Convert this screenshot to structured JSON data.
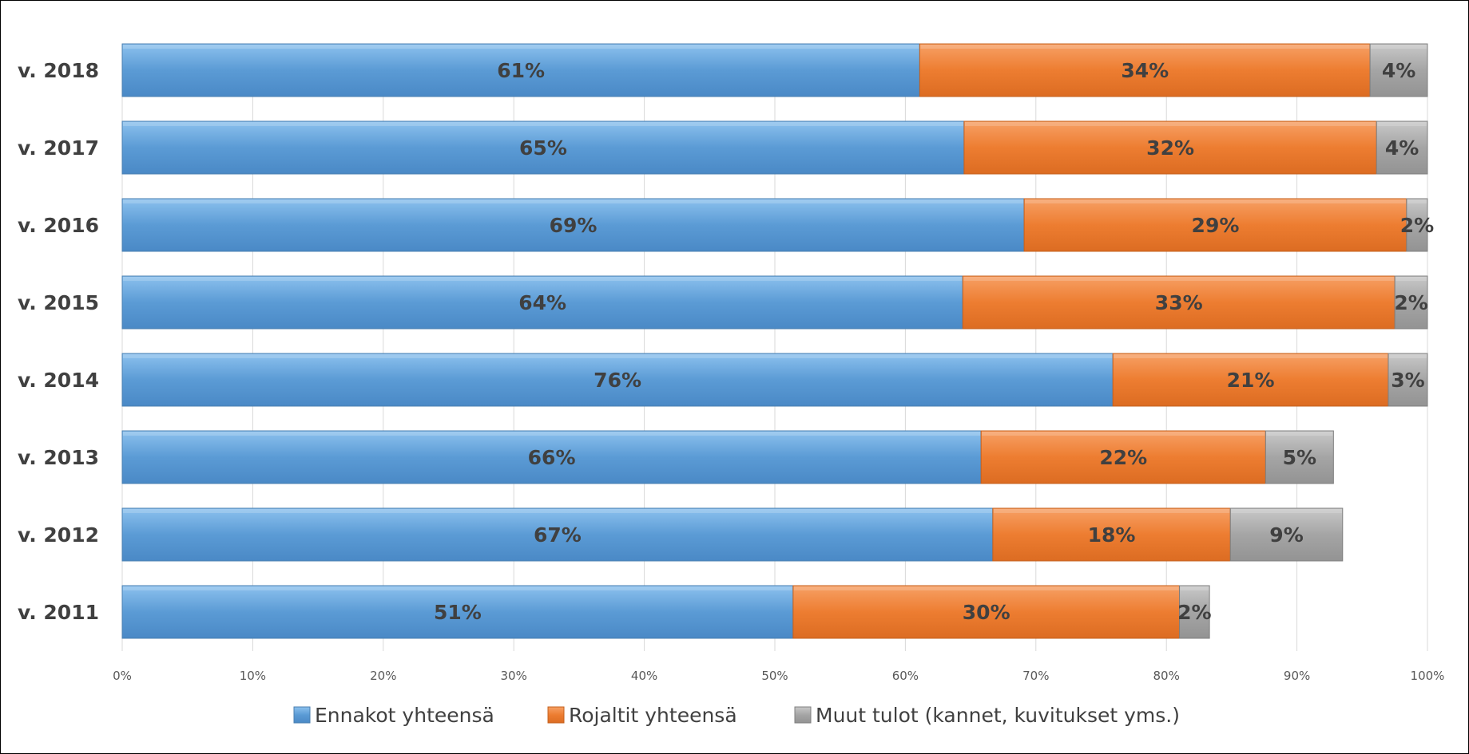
{
  "chart_data": {
    "type": "bar",
    "orientation": "horizontal",
    "stacked": true,
    "categories": [
      "v. 2018",
      "v. 2017",
      "v. 2016",
      "v. 2015",
      "v. 2014",
      "v. 2013",
      "v. 2012",
      "v. 2011"
    ],
    "series": [
      {
        "name": "Ennakot yhteensä",
        "color": "#5B9BD5",
        "values": [
          61.1,
          64.5,
          69.1,
          64.4,
          75.9,
          65.8,
          66.7,
          51.4
        ],
        "labels": [
          "61%",
          "65%",
          "69%",
          "64%",
          "76%",
          "66%",
          "67%",
          "51%"
        ]
      },
      {
        "name": "Rojaltit yhteensä",
        "color": "#ED7D31",
        "values": [
          34.5,
          31.6,
          29.3,
          33.1,
          21.1,
          21.8,
          18.2,
          29.6
        ],
        "labels": [
          "34%",
          "32%",
          "29%",
          "33%",
          "21%",
          "22%",
          "18%",
          "30%"
        ]
      },
      {
        "name": "Muut tulot (kannet, kuvitukset yms.)",
        "color": "#A5A5A5",
        "values": [
          4.4,
          3.9,
          1.6,
          2.5,
          3.0,
          5.2,
          8.6,
          2.3
        ],
        "labels": [
          "4%",
          "4%",
          "2%",
          "2%",
          "3%",
          "5%",
          "9%",
          "2%"
        ]
      }
    ],
    "x_ticks": [
      "0%",
      "10%",
      "20%",
      "30%",
      "40%",
      "50%",
      "60%",
      "70%",
      "80%",
      "90%",
      "100%"
    ],
    "xlim": [
      0,
      100
    ],
    "grid": true,
    "legend_position": "bottom"
  }
}
